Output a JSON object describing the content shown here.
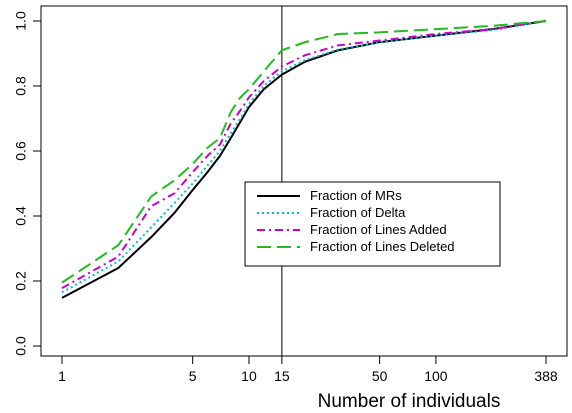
{
  "chart_data": {
    "type": "line",
    "title": "",
    "xlabel": "Number of individuals",
    "ylabel": "",
    "x_scale": "log",
    "xlim": [
      1,
      388
    ],
    "ylim": [
      0,
      1
    ],
    "x_ticks": [
      1,
      5,
      10,
      15,
      50,
      100,
      388
    ],
    "x_tick_labels": [
      "1",
      "5",
      "10",
      "15",
      "50",
      "100",
      "388"
    ],
    "y_ticks": [
      0,
      0.2,
      0.4,
      0.6,
      0.8,
      1
    ],
    "y_tick_labels": [
      "0.0",
      "0.2",
      "0.4",
      "0.6",
      "0.8",
      "1.0"
    ],
    "reference_line_x": 15,
    "grid": false,
    "legend_position": "center-right",
    "series": [
      {
        "name": "Fraction of MRs",
        "color": "#000000",
        "dash": "solid",
        "x": [
          1,
          2,
          3,
          4,
          5,
          6,
          7,
          8,
          9,
          10,
          12,
          15,
          20,
          30,
          50,
          100,
          200,
          388
        ],
        "y": [
          0.148,
          0.24,
          0.335,
          0.41,
          0.48,
          0.535,
          0.585,
          0.64,
          0.69,
          0.735,
          0.79,
          0.835,
          0.875,
          0.91,
          0.935,
          0.955,
          0.975,
          1.0
        ]
      },
      {
        "name": "Fraction of Delta",
        "color": "#00bcd4",
        "dash": "dotted",
        "x": [
          1,
          2,
          3,
          4,
          5,
          6,
          7,
          8,
          9,
          10,
          12,
          15,
          20,
          30,
          50,
          100,
          200,
          388
        ],
        "y": [
          0.165,
          0.26,
          0.365,
          0.44,
          0.5,
          0.555,
          0.6,
          0.655,
          0.7,
          0.745,
          0.8,
          0.845,
          0.88,
          0.912,
          0.935,
          0.955,
          0.972,
          1.0
        ]
      },
      {
        "name": "Fraction of Lines Added",
        "color": "#cc00cc",
        "dash": "dashdot",
        "x": [
          1,
          2,
          3,
          4,
          5,
          6,
          7,
          8,
          9,
          10,
          12,
          15,
          20,
          30,
          50,
          100,
          200,
          388
        ],
        "y": [
          0.178,
          0.275,
          0.43,
          0.47,
          0.535,
          0.585,
          0.62,
          0.685,
          0.725,
          0.765,
          0.815,
          0.86,
          0.895,
          0.925,
          0.94,
          0.96,
          0.975,
          1.0
        ]
      },
      {
        "name": "Fraction of Lines Deleted",
        "color": "#22bb22",
        "dash": "longdash",
        "x": [
          1,
          2,
          3,
          4,
          5,
          6,
          7,
          8,
          9,
          10,
          12,
          15,
          20,
          30,
          50,
          100,
          200,
          388
        ],
        "y": [
          0.195,
          0.31,
          0.46,
          0.51,
          0.56,
          0.61,
          0.64,
          0.72,
          0.765,
          0.79,
          0.845,
          0.91,
          0.935,
          0.96,
          0.965,
          0.975,
          0.985,
          1.0
        ]
      }
    ]
  }
}
